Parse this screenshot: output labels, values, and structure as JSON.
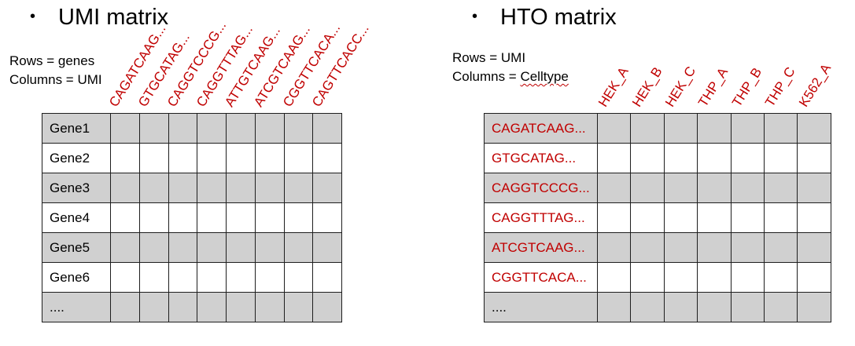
{
  "umi": {
    "title": "UMI matrix",
    "bullet": "•",
    "desc_rows": "Rows = genes",
    "desc_cols": "Columns = UMI",
    "columns": [
      "CAGATCAAG...",
      "GTGCATAG...",
      "CAGGTCCCG...",
      "CAGGTTTAG...",
      "ATTGTCAAG...",
      "ATCGTCAAG...",
      "CGGTTCACA...",
      "CAGTTCACC..."
    ],
    "rows": [
      "Gene1",
      "Gene2",
      "Gene3",
      "Gene4",
      "Gene5",
      "Gene6",
      "...."
    ]
  },
  "hto": {
    "title": "HTO matrix",
    "bullet": "•",
    "desc_rows": "Rows = UMI",
    "desc_cols_prefix": "Columns = ",
    "desc_cols_word": "Celltype",
    "columns": [
      "HEK_A",
      "HEK_B",
      "HEK_C",
      "THP_A",
      "THP_B",
      "THP_C",
      "K562_A"
    ],
    "rows": [
      "CAGATCAAG...",
      "GTGCATAG...",
      "CAGGTCCCG...",
      "CAGGTTTAG...",
      "ATCGTCAAG...",
      "CGGTTCACA...",
      "...."
    ]
  },
  "colors": {
    "label_red": "#c00000",
    "shaded_row": "#d0d0d0",
    "grid_line": "#1e1e1e"
  }
}
